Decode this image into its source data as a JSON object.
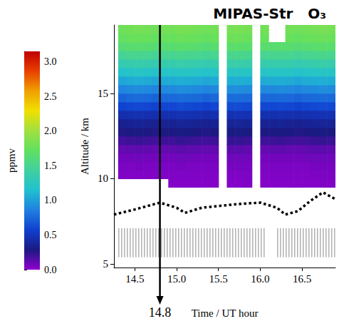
{
  "chart_data": {
    "type": "heatmap",
    "title": "MIPAS-Str   O₃",
    "xlabel": "Time / UT hour",
    "ylabel": "Altitude / km",
    "xlim": [
      14.25,
      16.9
    ],
    "xticks": [
      14.5,
      {
        "value": 15,
        "label": "15.0"
      },
      15.5,
      {
        "value": 16,
        "label": "16.0"
      },
      16.5
    ],
    "ylim": [
      4.8,
      19
    ],
    "yticks": [
      5,
      10,
      15
    ],
    "grid": false,
    "x": [
      14.35,
      14.45,
      14.55,
      14.65,
      14.75,
      14.85,
      14.95,
      15.05,
      15.15,
      15.25,
      15.35,
      15.45,
      15.55,
      15.65,
      15.75,
      15.85,
      15.95,
      16.05,
      16.15,
      16.25,
      16.35,
      16.45,
      16.55,
      16.65,
      16.75,
      16.85
    ],
    "y": [
      9.75,
      10.25,
      10.75,
      11.25,
      11.75,
      12.25,
      12.75,
      13.25,
      13.75,
      14.25,
      14.75,
      15.25,
      15.75,
      16.25,
      16.75,
      17.25,
      17.75,
      18.25,
      18.75
    ],
    "cell_size": [
      0.1,
      0.5
    ],
    "z": [
      [
        null,
        null,
        null,
        null,
        null,
        null,
        0.03,
        0.03,
        0.03,
        0.03,
        0.03,
        0.03,
        null,
        0.03,
        0.03,
        0.04,
        null,
        0.03,
        0.03,
        0.03,
        0.03,
        0.03,
        0.03,
        0.03,
        0.04,
        0.04
      ],
      [
        0.04,
        0.04,
        0.04,
        0.04,
        0.04,
        0.04,
        0.04,
        0.04,
        0.04,
        0.04,
        0.04,
        0.04,
        null,
        0.04,
        0.04,
        0.05,
        null,
        0.04,
        0.04,
        0.04,
        0.04,
        0.04,
        0.04,
        0.05,
        0.05,
        0.05
      ],
      [
        0.05,
        0.05,
        0.06,
        0.05,
        0.05,
        0.05,
        0.05,
        0.06,
        0.05,
        0.05,
        0.05,
        0.05,
        null,
        0.06,
        0.06,
        0.06,
        null,
        0.05,
        0.05,
        0.05,
        0.05,
        0.05,
        0.05,
        0.06,
        0.06,
        0.06
      ],
      [
        0.07,
        0.07,
        0.08,
        0.07,
        0.07,
        0.07,
        0.07,
        0.08,
        0.08,
        0.07,
        0.07,
        0.07,
        null,
        0.08,
        0.08,
        0.08,
        null,
        0.07,
        0.07,
        0.07,
        0.07,
        0.07,
        0.08,
        0.08,
        0.08,
        0.08
      ],
      [
        0.11,
        0.12,
        0.12,
        0.12,
        0.11,
        0.11,
        0.12,
        0.13,
        0.12,
        0.12,
        0.11,
        0.11,
        null,
        0.13,
        0.13,
        0.12,
        null,
        0.11,
        0.12,
        0.12,
        0.11,
        0.11,
        0.12,
        0.13,
        0.13,
        0.12
      ],
      [
        0.19,
        0.2,
        0.21,
        0.2,
        0.19,
        0.2,
        0.2,
        0.22,
        0.21,
        0.2,
        0.19,
        0.2,
        null,
        0.22,
        0.22,
        0.21,
        null,
        0.2,
        0.2,
        0.21,
        0.2,
        0.19,
        0.2,
        0.21,
        0.22,
        0.21
      ],
      [
        0.27,
        0.28,
        0.29,
        0.28,
        0.27,
        0.28,
        0.28,
        0.3,
        0.29,
        0.28,
        0.27,
        0.28,
        null,
        0.3,
        0.3,
        0.29,
        null,
        0.28,
        0.28,
        0.29,
        0.28,
        0.27,
        0.28,
        0.29,
        0.3,
        0.29
      ],
      [
        0.34,
        0.35,
        0.36,
        0.35,
        0.34,
        0.35,
        0.35,
        0.37,
        0.36,
        0.35,
        0.34,
        0.35,
        null,
        0.37,
        0.37,
        0.36,
        null,
        0.35,
        0.35,
        0.36,
        0.35,
        0.34,
        0.35,
        0.36,
        0.37,
        0.36
      ],
      [
        0.44,
        0.45,
        0.46,
        0.45,
        0.44,
        0.45,
        0.45,
        0.47,
        0.46,
        0.45,
        0.44,
        0.45,
        null,
        0.47,
        0.47,
        0.46,
        null,
        0.45,
        0.45,
        0.46,
        0.45,
        0.44,
        0.45,
        0.46,
        0.47,
        0.46
      ],
      [
        0.58,
        0.6,
        0.61,
        0.6,
        0.58,
        0.6,
        0.6,
        0.62,
        0.61,
        0.6,
        0.58,
        0.6,
        null,
        0.62,
        0.62,
        0.61,
        null,
        0.6,
        0.6,
        0.61,
        0.6,
        0.58,
        0.6,
        0.61,
        0.62,
        0.61
      ],
      [
        0.73,
        0.75,
        0.76,
        0.75,
        0.73,
        0.75,
        0.75,
        0.77,
        0.76,
        0.75,
        0.73,
        0.75,
        null,
        0.77,
        0.77,
        0.76,
        null,
        0.75,
        0.75,
        0.76,
        0.75,
        0.73,
        0.75,
        0.76,
        0.77,
        0.76
      ],
      [
        0.88,
        0.9,
        0.91,
        0.9,
        0.88,
        0.9,
        0.9,
        0.92,
        0.91,
        0.9,
        0.88,
        0.9,
        null,
        0.92,
        0.92,
        0.91,
        null,
        0.9,
        0.9,
        0.91,
        0.9,
        0.88,
        0.9,
        0.91,
        0.92,
        0.91
      ],
      [
        1.03,
        1.05,
        1.06,
        1.05,
        1.03,
        1.05,
        1.05,
        1.07,
        1.06,
        1.05,
        1.03,
        1.05,
        null,
        1.07,
        1.07,
        1.06,
        null,
        1.05,
        1.05,
        1.06,
        1.05,
        1.03,
        1.05,
        1.06,
        1.07,
        1.06
      ],
      [
        1.18,
        1.2,
        1.21,
        1.2,
        1.18,
        1.2,
        1.2,
        1.22,
        1.21,
        1.2,
        1.18,
        1.2,
        null,
        1.22,
        1.22,
        1.21,
        null,
        1.2,
        1.2,
        1.21,
        1.2,
        1.18,
        1.2,
        1.21,
        1.22,
        1.21
      ],
      [
        1.33,
        1.35,
        1.36,
        1.35,
        1.33,
        1.35,
        1.35,
        1.37,
        1.36,
        1.35,
        1.33,
        1.35,
        null,
        1.37,
        1.37,
        1.36,
        null,
        1.35,
        1.35,
        1.36,
        1.35,
        1.33,
        1.35,
        1.36,
        1.37,
        1.36
      ],
      [
        1.48,
        1.5,
        1.51,
        1.5,
        1.48,
        1.5,
        1.5,
        1.52,
        1.51,
        1.5,
        1.48,
        1.5,
        null,
        1.52,
        1.52,
        1.51,
        null,
        1.5,
        1.5,
        1.51,
        1.5,
        1.48,
        1.5,
        1.51,
        1.52,
        1.51
      ],
      [
        1.63,
        1.65,
        1.66,
        1.65,
        1.63,
        1.65,
        1.65,
        1.67,
        1.66,
        1.65,
        1.63,
        1.65,
        null,
        1.67,
        1.67,
        1.66,
        null,
        1.65,
        1.65,
        1.66,
        1.65,
        1.63,
        1.65,
        1.66,
        1.67,
        1.66
      ],
      [
        1.73,
        1.75,
        1.76,
        1.75,
        1.73,
        1.75,
        1.75,
        1.77,
        1.76,
        1.75,
        1.73,
        1.75,
        null,
        1.77,
        1.77,
        1.76,
        null,
        1.75,
        null,
        null,
        1.75,
        1.73,
        1.75,
        1.76,
        1.77,
        1.76
      ],
      [
        1.78,
        1.8,
        1.81,
        1.8,
        1.78,
        1.8,
        1.8,
        1.82,
        1.81,
        1.8,
        1.78,
        1.8,
        null,
        1.82,
        1.82,
        1.81,
        null,
        1.8,
        null,
        null,
        1.8,
        1.78,
        1.8,
        1.81,
        1.82,
        1.81
      ]
    ],
    "colorbar": {
      "label": "ppmv",
      "range": [
        0,
        3.15
      ],
      "ticks": [
        {
          "value": 0,
          "label": "0.0"
        },
        0.5,
        {
          "value": 1,
          "label": "1.0"
        },
        1.5,
        {
          "value": 2,
          "label": "2.0"
        },
        2.5,
        {
          "value": 3,
          "label": "3.0"
        }
      ],
      "colors": [
        "#9000d0",
        "#1a1a80",
        "#1040d0",
        "#2080e0",
        "#20c0d0",
        "#40d0a0",
        "#60e060",
        "#a0e040",
        "#f0e000",
        "#f0a000",
        "#e84000",
        "#c00000"
      ]
    },
    "series": [
      {
        "type": "line",
        "line_style": "dotted",
        "color": "#000000",
        "x": [
          14.25,
          14.5,
          14.8,
          15.0,
          15.1,
          15.3,
          15.5,
          15.7,
          16.0,
          16.2,
          16.3,
          16.45,
          16.6,
          16.75,
          16.9
        ],
        "values": [
          7.9,
          8.2,
          8.6,
          8.3,
          8.0,
          8.3,
          8.4,
          8.5,
          8.6,
          8.3,
          7.9,
          8.1,
          8.7,
          9.2,
          8.8
        ]
      }
    ],
    "hatched_band": {
      "y": [
        5.4,
        7.1
      ],
      "x": [
        [
          14.3,
          16.05
        ],
        [
          16.2,
          16.9
        ]
      ],
      "color": "#888888"
    },
    "annotations": [
      {
        "x": 14.8,
        "label": "14.8"
      }
    ]
  }
}
